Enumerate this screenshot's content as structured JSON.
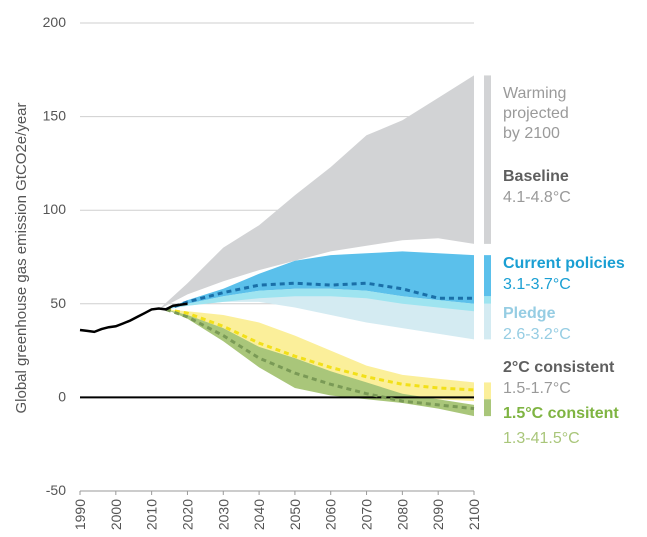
{
  "chart_data": {
    "type": "area",
    "ylabel": "Global greenhouse gas emission  GtCO2e/year",
    "xlim": [
      1990,
      2100
    ],
    "ylim": [
      -50,
      200
    ],
    "yticks": [
      "200",
      "150",
      "100",
      "50",
      "0",
      "-50"
    ],
    "ytick_values": [
      200,
      150,
      100,
      50,
      0,
      -50
    ],
    "xticks": [
      "1990",
      "2000",
      "2010",
      "2020",
      "2030",
      "2040",
      "2050",
      "2060",
      "2070",
      "2080",
      "2090",
      "2100"
    ],
    "xtick_values": [
      1990,
      2000,
      2010,
      2020,
      2030,
      2040,
      2050,
      2060,
      2070,
      2080,
      2090,
      2100
    ],
    "grid": true,
    "colors": {
      "baseline": "#d2d3d5",
      "current": "#5bc0eb",
      "current_line": "#1a6fa8",
      "pledge": "#d4ebf2",
      "pledge_overlap": "#9ee4f0",
      "two_band": "#fbef9a",
      "two_line": "#f2e019",
      "one_five_band": "#a9c67a",
      "one_five_line": "#7a9a56",
      "historical": "#000000",
      "zero_line": "#000000",
      "label_grey": "#9a9a9a",
      "label_dark": "#5f5f5f",
      "label_blue": "#1a9fd3",
      "label_lightblue": "#96cde3",
      "label_green": "#7fb442"
    },
    "historical": {
      "x": [
        1990,
        1992,
        1994,
        1996,
        1998,
        2000,
        2002,
        2004,
        2006,
        2008,
        2010,
        2012,
        2014,
        2016,
        2018,
        2020
      ],
      "y": [
        36,
        35.5,
        35,
        36.5,
        37.5,
        38,
        39.5,
        41,
        43,
        45,
        47,
        47.5,
        47,
        49,
        49.5,
        50
      ]
    },
    "series": [
      {
        "name": "Baseline",
        "x": [
          2012,
          2020,
          2030,
          2040,
          2050,
          2060,
          2070,
          2080,
          2090,
          2100
        ],
        "lower": [
          47,
          55,
          62,
          68,
          73,
          78,
          81,
          84,
          85,
          82
        ],
        "upper": [
          47,
          61,
          80,
          92,
          108,
          123,
          140,
          148,
          160,
          172
        ]
      },
      {
        "name": "Current policies",
        "x": [
          2014,
          2020,
          2030,
          2040,
          2050,
          2060,
          2070,
          2080,
          2090,
          2100
        ],
        "lower": [
          47,
          50,
          54,
          57,
          58,
          58,
          57,
          54,
          52,
          50
        ],
        "upper": [
          47,
          52,
          58,
          66,
          73,
          76,
          77,
          78,
          77,
          76
        ],
        "central": [
          47,
          51,
          56,
          60,
          61,
          60,
          61,
          58,
          53,
          53
        ]
      },
      {
        "name": "Pledge",
        "x": [
          2014,
          2020,
          2030,
          2040,
          2050,
          2060,
          2070,
          2080,
          2090,
          2100
        ],
        "lower": [
          47,
          49,
          51,
          51,
          48,
          44,
          40,
          37,
          34,
          31
        ],
        "upper": [
          47,
          51,
          55,
          58,
          58,
          58,
          58,
          56,
          55,
          54
        ]
      },
      {
        "name": "2°C consistent",
        "x": [
          2014,
          2020,
          2030,
          2040,
          2050,
          2060,
          2070,
          2080,
          2090,
          2100
        ],
        "lower": [
          47,
          44,
          33,
          22,
          12,
          7,
          4,
          1,
          -1,
          -2
        ],
        "upper": [
          47,
          46,
          44,
          40,
          33,
          25,
          17,
          12,
          10,
          8
        ],
        "central": [
          47,
          45,
          38,
          29,
          22,
          16,
          11,
          7,
          5,
          4
        ]
      },
      {
        "name": "1.5°C consitent",
        "x": [
          2014,
          2020,
          2030,
          2040,
          2050,
          2060,
          2070,
          2080,
          2090,
          2100
        ],
        "lower": [
          47,
          42,
          30,
          16,
          5,
          1,
          -1,
          -3,
          -6,
          -10
        ],
        "upper": [
          47,
          44,
          37,
          27,
          21,
          14,
          8,
          2,
          -1,
          -4
        ],
        "central": [
          47,
          43,
          33,
          21,
          13,
          7,
          2,
          -2,
          -4,
          -6
        ]
      }
    ]
  },
  "legend": {
    "header": [
      "Warming",
      "projected",
      "by 2100"
    ],
    "items": [
      {
        "name": "Baseline",
        "range": "4.1-4.8°C"
      },
      {
        "name": "Current policies",
        "range": "3.1-3.7°C"
      },
      {
        "name": "Pledge",
        "range": "2.6-3.2°C"
      },
      {
        "name": "2°C consistent",
        "range": "1.5-1.7°C"
      },
      {
        "name": "1.5°C consitent",
        "range": "1.3-41.5°C"
      }
    ]
  }
}
